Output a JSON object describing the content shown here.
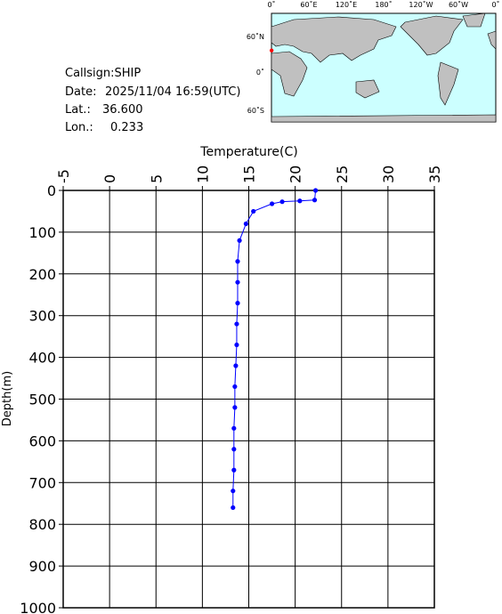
{
  "info": {
    "callsign": "Callsign:SHIP",
    "date_label": "Date:",
    "date": "2025/11/04 16:59(UTC)",
    "lat_label": "Lat.:",
    "lat": {
      "value": 36.6,
      "label": "36.600"
    },
    "lon_label": "Lon.:",
    "lon": 0.233
  },
  "map": {
    "lon_labels": [
      "0˚",
      "60˚E",
      "120˚E",
      "180˚",
      "120˚W",
      "60˚W",
      "0˚"
    ],
    "lat_labels": [
      "60˚N",
      "0˚",
      "60˚S"
    ],
    "marker_color": "#ff0000"
  },
  "chart_data": {
    "type": "line",
    "x_label": "Temperature(C)",
    "y_label": "Depth(m)",
    "color": "#0000ff",
    "xlim": [
      -5,
      35
    ],
    "xticks": [
      -5,
      0,
      5,
      10,
      15,
      20,
      25,
      30,
      35
    ],
    "ylim": [
      0,
      1000
    ],
    "yticks": [
      0,
      100,
      200,
      300,
      400,
      500,
      600,
      700,
      800,
      900,
      1000
    ],
    "grid": true,
    "y_inverted": true,
    "depth": [
      0,
      23,
      25,
      27,
      32,
      50,
      80,
      120,
      170,
      220,
      270,
      320,
      370,
      420,
      470,
      520,
      570,
      620,
      670,
      720,
      760
    ],
    "values": [
      22.2,
      22.1,
      20.5,
      18.6,
      17.5,
      15.5,
      14.7,
      14.0,
      13.8,
      13.8,
      13.8,
      13.7,
      13.7,
      13.6,
      13.5,
      13.5,
      13.4,
      13.4,
      13.4,
      13.3,
      13.3
    ]
  }
}
